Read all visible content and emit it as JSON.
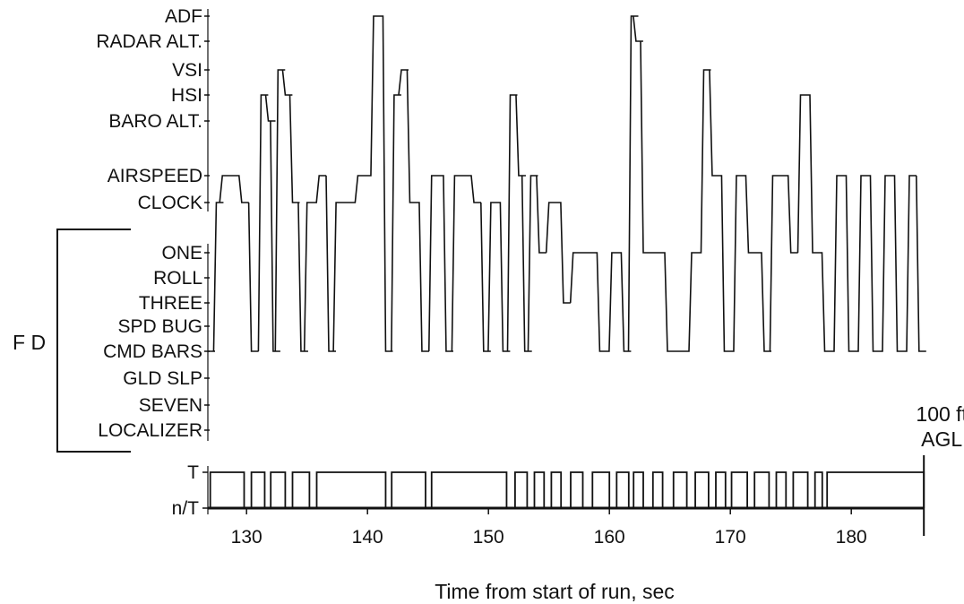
{
  "chart_data": {
    "type": "line",
    "title": "",
    "xlabel": "Time from start of run, sec",
    "ylabel": "",
    "xlim": [
      126.8,
      186
    ],
    "x_ticks": [
      130,
      140,
      150,
      160,
      170,
      180
    ],
    "x_tick_labels": [
      "130",
      "140",
      "150",
      "160",
      "170",
      "180"
    ],
    "y_categories": [
      "ADF",
      "RADAR ALT.",
      "VSI",
      "HSI",
      "BARO ALT.",
      "AIRSPEED",
      "CLOCK",
      "ONE",
      "ROLL",
      "THREE",
      "SPD BUG",
      "CMD BARS",
      "GLD SLP",
      "SEVEN",
      "LOCALIZER"
    ],
    "group_label": "F D",
    "group_members": [
      "ONE",
      "ROLL",
      "THREE",
      "SPD BUG",
      "CMD BARS",
      "GLD SLP",
      "SEVEN",
      "LOCALIZER"
    ],
    "end_marker": {
      "label_line1": "100 ft",
      "label_line2": "AGL",
      "x": 186
    },
    "series": [
      {
        "kind": "instrument_scan",
        "points": [
          [
            126.8,
            "CMD BARS"
          ],
          [
            127.5,
            "CLOCK"
          ],
          [
            128.0,
            "AIRSPEED"
          ],
          [
            129.6,
            "CLOCK"
          ],
          [
            130.4,
            "CMD BARS"
          ],
          [
            131.2,
            "HSI"
          ],
          [
            131.8,
            "BARO ALT."
          ],
          [
            132.2,
            "CMD BARS"
          ],
          [
            132.6,
            "VSI"
          ],
          [
            133.2,
            "HSI"
          ],
          [
            133.8,
            "CLOCK"
          ],
          [
            134.5,
            "CMD BARS"
          ],
          [
            135.0,
            "CLOCK"
          ],
          [
            136.0,
            "AIRSPEED"
          ],
          [
            136.8,
            "CMD BARS"
          ],
          [
            137.4,
            "CLOCK"
          ],
          [
            138.3,
            "CLOCK"
          ],
          [
            139.2,
            "AIRSPEED"
          ],
          [
            140.5,
            "ADF"
          ],
          [
            141.5,
            "CMD BARS"
          ],
          [
            142.2,
            "HSI"
          ],
          [
            142.8,
            "VSI"
          ],
          [
            143.5,
            "CLOCK"
          ],
          [
            144.5,
            "CMD BARS"
          ],
          [
            145.3,
            "AIRSPEED"
          ],
          [
            146.5,
            "CMD BARS"
          ],
          [
            147.2,
            "AIRSPEED"
          ],
          [
            148.8,
            "CLOCK"
          ],
          [
            149.6,
            "CMD BARS"
          ],
          [
            150.2,
            "CLOCK"
          ],
          [
            151.2,
            "CMD BARS"
          ],
          [
            151.8,
            "HSI"
          ],
          [
            152.5,
            "AIRSPEED"
          ],
          [
            153.0,
            "CMD BARS"
          ],
          [
            153.5,
            "AIRSPEED"
          ],
          [
            154.2,
            "ONE"
          ],
          [
            155.0,
            "CLOCK"
          ],
          [
            156.2,
            "THREE"
          ],
          [
            157.0,
            "ONE"
          ],
          [
            158.2,
            "ONE"
          ],
          [
            159.2,
            "CMD BARS"
          ],
          [
            160.2,
            "ONE"
          ],
          [
            161.2,
            "CMD BARS"
          ],
          [
            161.8,
            "ADF"
          ],
          [
            162.2,
            "RADAR ALT."
          ],
          [
            162.8,
            "ONE"
          ],
          [
            164.8,
            "CMD BARS"
          ],
          [
            166.8,
            "ONE"
          ],
          [
            167.8,
            "VSI"
          ],
          [
            168.5,
            "AIRSPEED"
          ],
          [
            169.5,
            "CMD BARS"
          ],
          [
            170.5,
            "AIRSPEED"
          ],
          [
            171.5,
            "ONE"
          ],
          [
            172.8,
            "CMD BARS"
          ],
          [
            173.5,
            "AIRSPEED"
          ],
          [
            175.0,
            "ONE"
          ],
          [
            175.8,
            "HSI"
          ],
          [
            176.8,
            "ONE"
          ],
          [
            177.8,
            "CMD BARS"
          ],
          [
            178.8,
            "AIRSPEED"
          ],
          [
            179.8,
            "CMD BARS"
          ],
          [
            180.8,
            "AIRSPEED"
          ],
          [
            181.8,
            "CMD BARS"
          ],
          [
            182.8,
            "AIRSPEED"
          ],
          [
            183.8,
            "CMD BARS"
          ],
          [
            184.8,
            "AIRSPEED"
          ],
          [
            185.6,
            "CMD BARS"
          ]
        ]
      },
      {
        "kind": "T_state",
        "levels": [
          "T",
          "n/T"
        ],
        "intervals_T": [
          [
            127.0,
            129.8
          ],
          [
            130.4,
            131.5
          ],
          [
            132.0,
            133.2
          ],
          [
            133.8,
            135.2
          ],
          [
            135.8,
            141.5
          ],
          [
            142.0,
            144.8
          ],
          [
            145.3,
            151.5
          ],
          [
            152.2,
            153.2
          ],
          [
            153.8,
            154.6
          ],
          [
            155.2,
            156.0
          ],
          [
            156.8,
            157.8
          ],
          [
            158.6,
            160.0
          ],
          [
            160.6,
            161.6
          ],
          [
            162.0,
            162.8
          ],
          [
            163.6,
            164.4
          ],
          [
            165.3,
            166.4
          ],
          [
            167.1,
            168.2
          ],
          [
            168.8,
            169.6
          ],
          [
            170.1,
            171.4
          ],
          [
            172.0,
            173.2
          ],
          [
            173.8,
            174.6
          ],
          [
            175.2,
            176.4
          ],
          [
            177.0,
            177.6
          ],
          [
            178.0,
            186.0
          ]
        ]
      }
    ],
    "y_tick_labels_bottom": [
      "T",
      "n/T"
    ]
  }
}
